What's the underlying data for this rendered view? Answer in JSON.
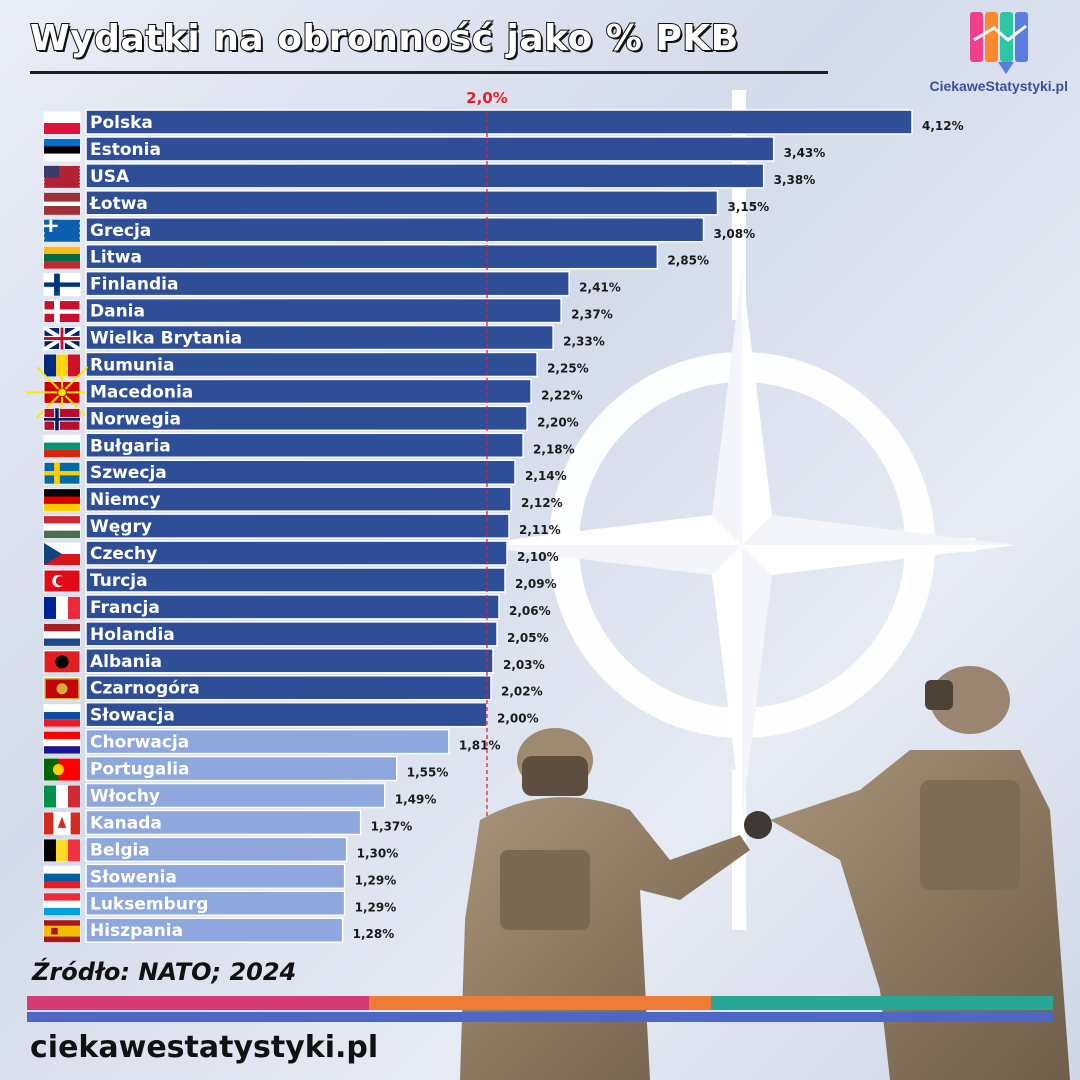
{
  "title": "Wydatki na obronność jako % PKB",
  "brand": {
    "caption": "CiekaweStatystyki.pl",
    "logo_colors": [
      "#f13f8c",
      "#ff8a2c",
      "#2ec4a5",
      "#5c7de0"
    ]
  },
  "source": "Źródło: NATO; 2024",
  "website": "ciekawestatystyki.pl",
  "colors": {
    "above_threshold": "#2f4e98",
    "below_threshold": "#8ea7dc",
    "threshold_line": "#e2202c"
  },
  "footer_stripes": [
    "#d63b75",
    "#ee7c36",
    "#26a895",
    "#4f67c4"
  ],
  "chart_data": {
    "type": "bar",
    "orientation": "horizontal",
    "threshold": {
      "value": 2.0,
      "label": "2,0%"
    },
    "xlim": [
      0,
      4.12
    ],
    "categories": [
      "Polska",
      "Estonia",
      "USA",
      "Łotwa",
      "Grecja",
      "Litwa",
      "Finlandia",
      "Dania",
      "Wielka Brytania",
      "Rumunia",
      "Macedonia",
      "Norwegia",
      "Bułgaria",
      "Szwecja",
      "Niemcy",
      "Węgry",
      "Czechy",
      "Turcja",
      "Francja",
      "Holandia",
      "Albania",
      "Czarnogóra",
      "Słowacja",
      "Chorwacja",
      "Portugalia",
      "Włochy",
      "Kanada",
      "Belgia",
      "Słowenia",
      "Luksemburg",
      "Hiszpania"
    ],
    "values": [
      4.12,
      3.43,
      3.38,
      3.15,
      3.08,
      2.85,
      2.41,
      2.37,
      2.33,
      2.25,
      2.22,
      2.2,
      2.18,
      2.14,
      2.12,
      2.11,
      2.1,
      2.09,
      2.06,
      2.05,
      2.03,
      2.02,
      2.0,
      1.81,
      1.55,
      1.49,
      1.37,
      1.3,
      1.29,
      1.29,
      1.28
    ],
    "value_labels": [
      "4,12%",
      "3,43%",
      "3,38%",
      "3,15%",
      "3,08%",
      "2,85%",
      "2,41%",
      "2,37%",
      "2,33%",
      "2,25%",
      "2,22%",
      "2,20%",
      "2,18%",
      "2,14%",
      "2,12%",
      "2,11%",
      "2,10%",
      "2,09%",
      "2,06%",
      "2,05%",
      "2,03%",
      "2,02%",
      "2,00%",
      "1,81%",
      "1,55%",
      "1,49%",
      "1,37%",
      "1,30%",
      "1,29%",
      "1,29%",
      "1,28%"
    ],
    "flags": [
      {
        "type": "h",
        "colors": [
          "#ffffff",
          "#dc143c"
        ]
      },
      {
        "type": "h",
        "colors": [
          "#0072ce",
          "#000000",
          "#ffffff"
        ]
      },
      {
        "type": "us",
        "colors": [
          "#b22234",
          "#ffffff",
          "#3c3b6e"
        ]
      },
      {
        "type": "h3",
        "colors": [
          "#9e3039",
          "#ffffff",
          "#9e3039"
        ]
      },
      {
        "type": "gr",
        "colors": [
          "#0d5eaf",
          "#ffffff"
        ]
      },
      {
        "type": "h",
        "colors": [
          "#fdb913",
          "#006a44",
          "#c1272d"
        ]
      },
      {
        "type": "nordic",
        "colors": [
          "#ffffff",
          "#003580"
        ]
      },
      {
        "type": "nordic",
        "colors": [
          "#c8102e",
          "#ffffff"
        ]
      },
      {
        "type": "uk",
        "colors": [
          "#012169",
          "#ffffff",
          "#c8102e"
        ]
      },
      {
        "type": "v",
        "colors": [
          "#002b7f",
          "#fcd116",
          "#ce1126"
        ]
      },
      {
        "type": "mk",
        "colors": [
          "#d20000",
          "#ffe600"
        ]
      },
      {
        "type": "nordic2",
        "colors": [
          "#ba0c2f",
          "#ffffff",
          "#00205b"
        ]
      },
      {
        "type": "h",
        "colors": [
          "#ffffff",
          "#00966e",
          "#d62612"
        ]
      },
      {
        "type": "nordic",
        "colors": [
          "#006aa7",
          "#fecc00"
        ]
      },
      {
        "type": "h",
        "colors": [
          "#000000",
          "#dd0000",
          "#ffce00"
        ]
      },
      {
        "type": "h",
        "colors": [
          "#ce2939",
          "#ffffff",
          "#477050"
        ]
      },
      {
        "type": "cz",
        "colors": [
          "#ffffff",
          "#d7141a",
          "#11457e"
        ]
      },
      {
        "type": "tr",
        "colors": [
          "#e30a17",
          "#ffffff"
        ]
      },
      {
        "type": "v",
        "colors": [
          "#002395",
          "#ffffff",
          "#ed2939"
        ]
      },
      {
        "type": "h",
        "colors": [
          "#ae1c28",
          "#ffffff",
          "#21468b"
        ]
      },
      {
        "type": "al",
        "colors": [
          "#e41e20",
          "#000000"
        ]
      },
      {
        "type": "me",
        "colors": [
          "#c40308",
          "#d3ae3b"
        ]
      },
      {
        "type": "h",
        "colors": [
          "#ffffff",
          "#0b4ea2",
          "#ee1c25"
        ]
      },
      {
        "type": "h",
        "colors": [
          "#ff0000",
          "#ffffff",
          "#171796"
        ]
      },
      {
        "type": "pt",
        "colors": [
          "#006600",
          "#ff0000",
          "#ffcc00"
        ]
      },
      {
        "type": "v",
        "colors": [
          "#009246",
          "#ffffff",
          "#ce2b37"
        ]
      },
      {
        "type": "ca",
        "colors": [
          "#d52b1e",
          "#ffffff"
        ]
      },
      {
        "type": "v",
        "colors": [
          "#000000",
          "#fdda24",
          "#ef3340"
        ]
      },
      {
        "type": "h",
        "colors": [
          "#ffffff",
          "#005da4",
          "#ed1c24"
        ]
      },
      {
        "type": "h",
        "colors": [
          "#ed2939",
          "#ffffff",
          "#00a1de"
        ]
      },
      {
        "type": "es",
        "colors": [
          "#aa151b",
          "#f1bf00"
        ]
      }
    ]
  }
}
